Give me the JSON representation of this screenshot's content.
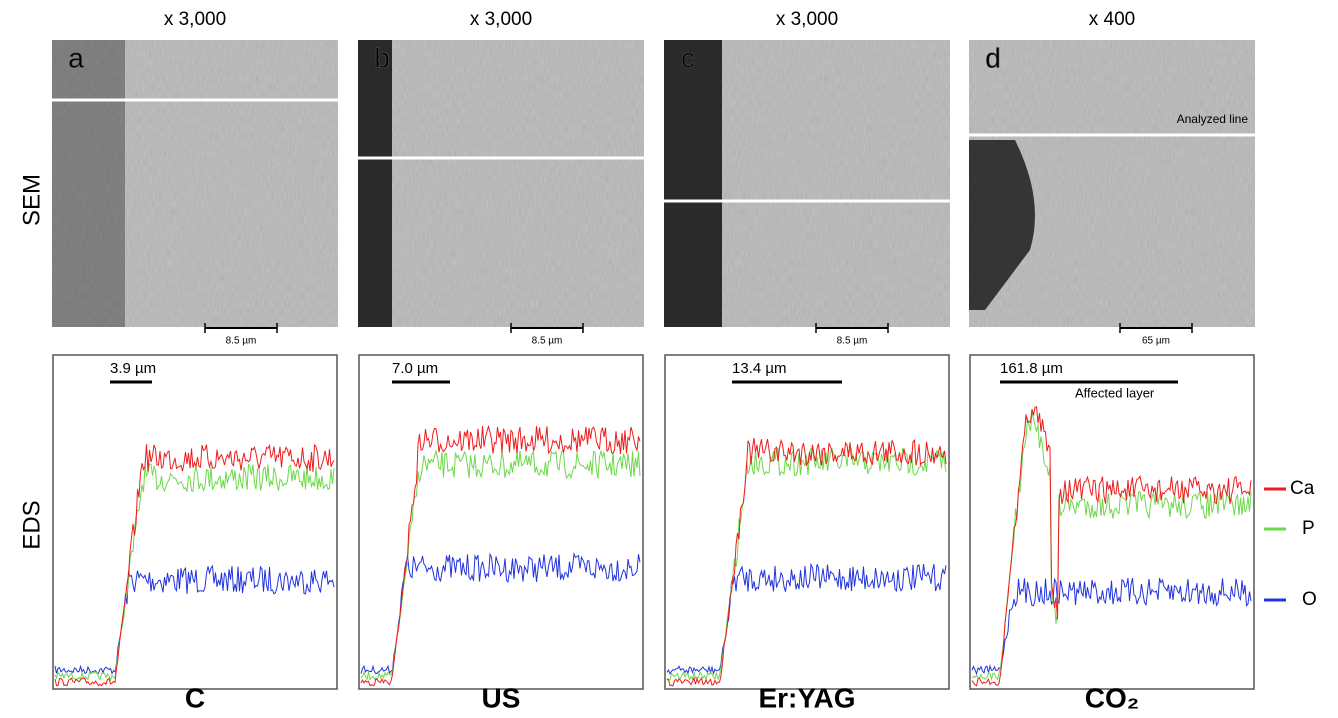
{
  "row_labels": {
    "sem": "SEM",
    "eds": "EDS"
  },
  "legend": [
    "Ca",
    "P",
    "O"
  ],
  "panels": [
    {
      "magnification": "x 3,000",
      "letter": "a",
      "scale_bar": "8.5 µm",
      "eds_scale": "3.9 µm",
      "label": "C"
    },
    {
      "magnification": "x 3,000",
      "letter": "b",
      "scale_bar": "8.5 µm",
      "eds_scale": "7.0 µm",
      "label": "US"
    },
    {
      "magnification": "x 3,000",
      "letter": "c",
      "scale_bar": "8.5 µm",
      "eds_scale": "13.4 µm",
      "label": "Er:YAG"
    },
    {
      "magnification": "x 400",
      "letter": "d",
      "scale_bar": "65 µm",
      "eds_scale": "161.8 µm",
      "label": "CO₂",
      "annotation": "Analyzed line",
      "eds_annotation": "Affected layer"
    }
  ]
}
